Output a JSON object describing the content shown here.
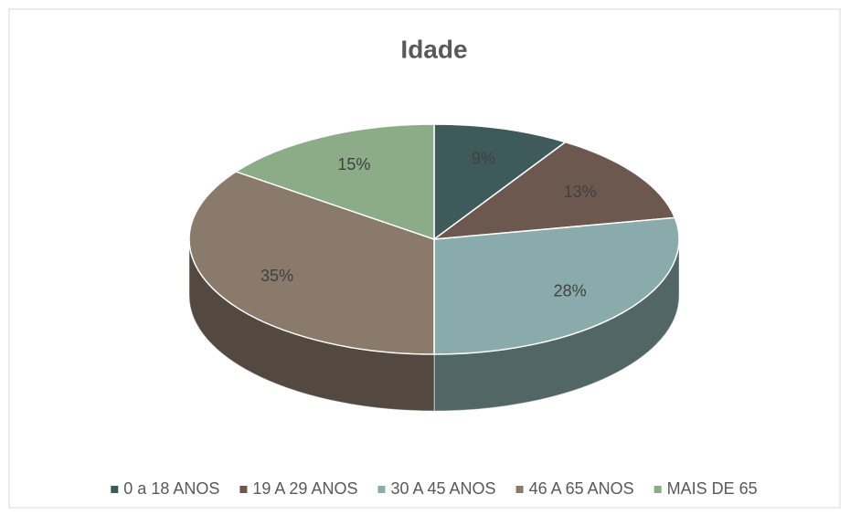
{
  "chart_data": {
    "type": "pie",
    "title": "Idade",
    "categories": [
      "0 a 18 ANOS",
      "19 A 29 ANOS",
      "30 A 45 ANOS",
      "46 A 65 ANOS",
      "MAIS DE 65"
    ],
    "values": [
      9,
      13,
      28,
      35,
      15
    ],
    "value_labels": [
      "9%",
      "13%",
      "28%",
      "35%",
      "15%"
    ],
    "colors": [
      "#3e5a5b",
      "#6d5850",
      "#8aabab",
      "#8a7a6c",
      "#8bac87"
    ],
    "legend": "bottom"
  }
}
